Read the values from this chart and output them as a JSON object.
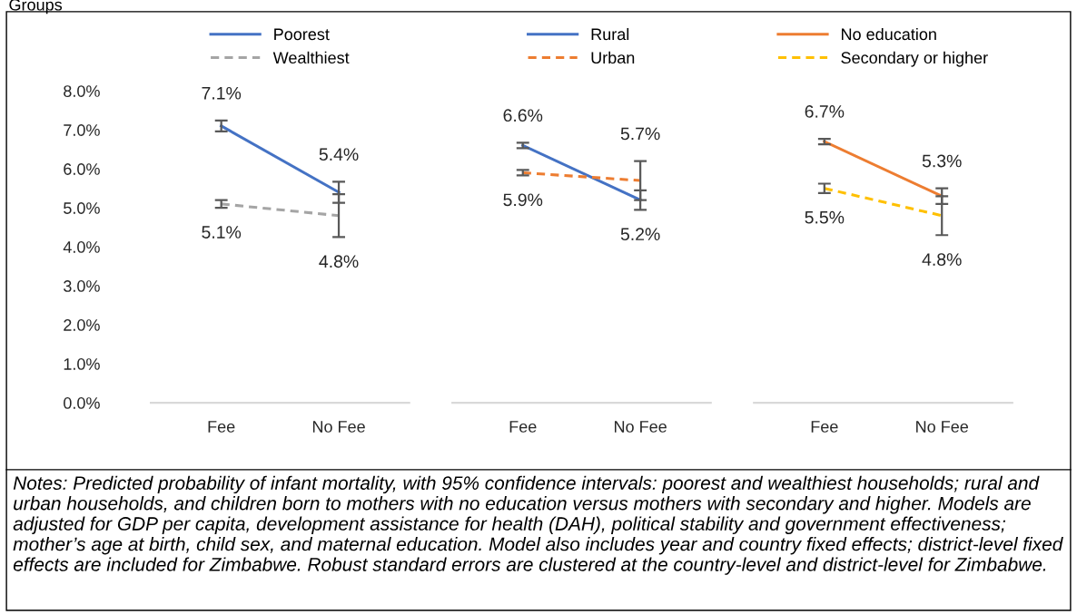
{
  "chart_data": [
    {
      "type": "line",
      "categories": [
        "Fee",
        "No Fee"
      ],
      "ylim": [
        0,
        8
      ],
      "yticks": [
        {
          "value": 0,
          "label": "0.0%"
        },
        {
          "value": 1,
          "label": "1.0%"
        },
        {
          "value": 2,
          "label": "2.0%"
        },
        {
          "value": 3,
          "label": "3.0%"
        },
        {
          "value": 4,
          "label": "4.0%"
        },
        {
          "value": 5,
          "label": "5.0%"
        },
        {
          "value": 6,
          "label": "6.0%"
        },
        {
          "value": 7,
          "label": "7.0%"
        },
        {
          "value": 8,
          "label": "8.0%"
        }
      ],
      "legend": "top",
      "grid": false,
      "marker": "none",
      "annotations": [
        "Groups"
      ],
      "series": [
        {
          "name": "Poorest",
          "color": "#4472c4",
          "line_style": "solid",
          "values": [
            7.1,
            5.4
          ],
          "errors": [
            0.14,
            0.27
          ],
          "value_labels": [
            "7.1%",
            "5.4%"
          ]
        },
        {
          "name": "Wealthiest",
          "color": "#a5a5a5",
          "line_style": "dashed",
          "values": [
            5.1,
            4.8
          ],
          "errors": [
            0.1,
            0.55
          ],
          "value_labels": [
            "5.1%",
            "4.8%"
          ]
        }
      ]
    },
    {
      "type": "line",
      "categories": [
        "Fee",
        "No Fee"
      ],
      "ylim": [
        0,
        8
      ],
      "tick_labels": "x",
      "legend": "top",
      "grid": false,
      "marker": "none",
      "series": [
        {
          "name": "Rural",
          "color": "#4472c4",
          "line_style": "solid",
          "values": [
            6.6,
            5.2
          ],
          "errors": [
            0.07,
            0.25
          ],
          "value_labels": [
            "6.6%",
            "5.2%"
          ]
        },
        {
          "name": "Urban",
          "color": "#ed7d31",
          "line_style": "dashed",
          "values": [
            5.9,
            5.7
          ],
          "errors": [
            0.07,
            0.5
          ],
          "value_labels": [
            "5.9%",
            "5.7%"
          ]
        }
      ]
    },
    {
      "type": "line",
      "categories": [
        "Fee",
        "No Fee"
      ],
      "ylim": [
        0,
        8
      ],
      "tick_labels": "x",
      "legend": "top",
      "grid": false,
      "marker": "none",
      "annotations": [
        "Notes: Predicted probability of infant mortality, with 95% confidence intervals: poorest and wealthiest households; rural and urban households, and children born to mothers with no education versus mothers with secondary and higher. Models are adjusted for GDP per capita, development assistance for health (DAH), political stability and government effectiveness; mother’s age at birth, child sex, and maternal education. Model also includes year and country fixed effects; district-level fixed effects are included for Zimbabwe. Robust standard errors are clustered at the country-level and district-level for Zimbabwe."
      ],
      "series": [
        {
          "name": "No education",
          "color": "#ed7d31",
          "line_style": "solid",
          "values": [
            6.7,
            5.3
          ],
          "errors": [
            0.07,
            0.2
          ],
          "value_labels": [
            "6.7%",
            "5.3%"
          ]
        },
        {
          "name": "Secondary or higher",
          "color": "#ffc000",
          "line_style": "dashed",
          "values": [
            5.5,
            4.8
          ],
          "errors": [
            0.12,
            0.5
          ],
          "value_labels": [
            "5.5%",
            "4.8%"
          ]
        }
      ]
    }
  ]
}
